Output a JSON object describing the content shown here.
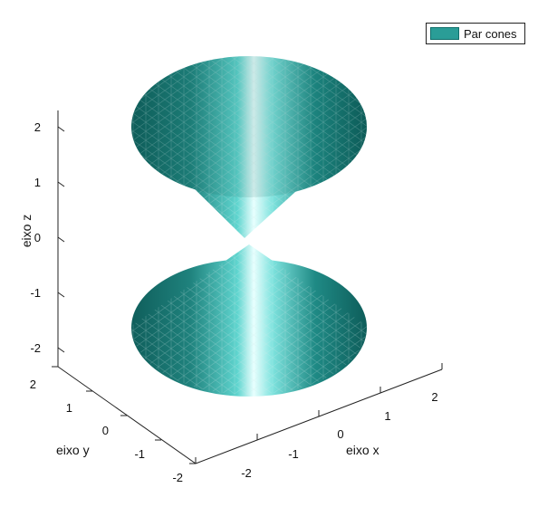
{
  "chart_data": {
    "type": "surface",
    "series": [
      {
        "name": "Par cones",
        "color": "#2a9d97"
      }
    ],
    "surfaces": [
      {
        "shape": "cone",
        "apex": [
          0,
          0,
          0
        ],
        "base_z": 2,
        "radius_at_base": 2
      },
      {
        "shape": "cone",
        "apex": [
          0,
          0,
          0
        ],
        "base_z": -2,
        "radius_at_base": 2
      }
    ],
    "xlabel": "eixo x",
    "ylabel": "eixo y",
    "zlabel": "eixo z",
    "xlim": [
      -2,
      2
    ],
    "ylim": [
      -2,
      2
    ],
    "zlim": [
      -2,
      2
    ],
    "x_ticks": [
      "-2",
      "-1",
      "0",
      "1",
      "2"
    ],
    "y_ticks": [
      "-2",
      "-1",
      "0",
      "1",
      "2"
    ],
    "z_ticks": [
      "-2",
      "-1",
      "0",
      "1",
      "2"
    ],
    "legend_position": "top-right",
    "grid": false
  }
}
